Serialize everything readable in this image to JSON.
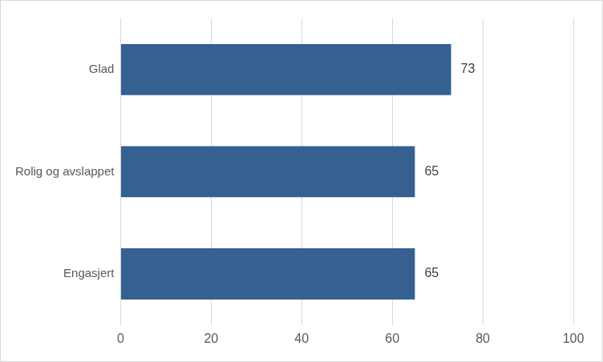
{
  "chart_data": {
    "type": "bar",
    "orientation": "horizontal",
    "categories": [
      "Glad",
      "Rolig og avslappet",
      "Engasjert"
    ],
    "values": [
      73,
      65,
      65
    ],
    "color": "#366092",
    "xlim": [
      0,
      100
    ],
    "xticks": [
      0,
      20,
      40,
      60,
      80,
      100
    ],
    "grid": true,
    "data_labels": true
  }
}
